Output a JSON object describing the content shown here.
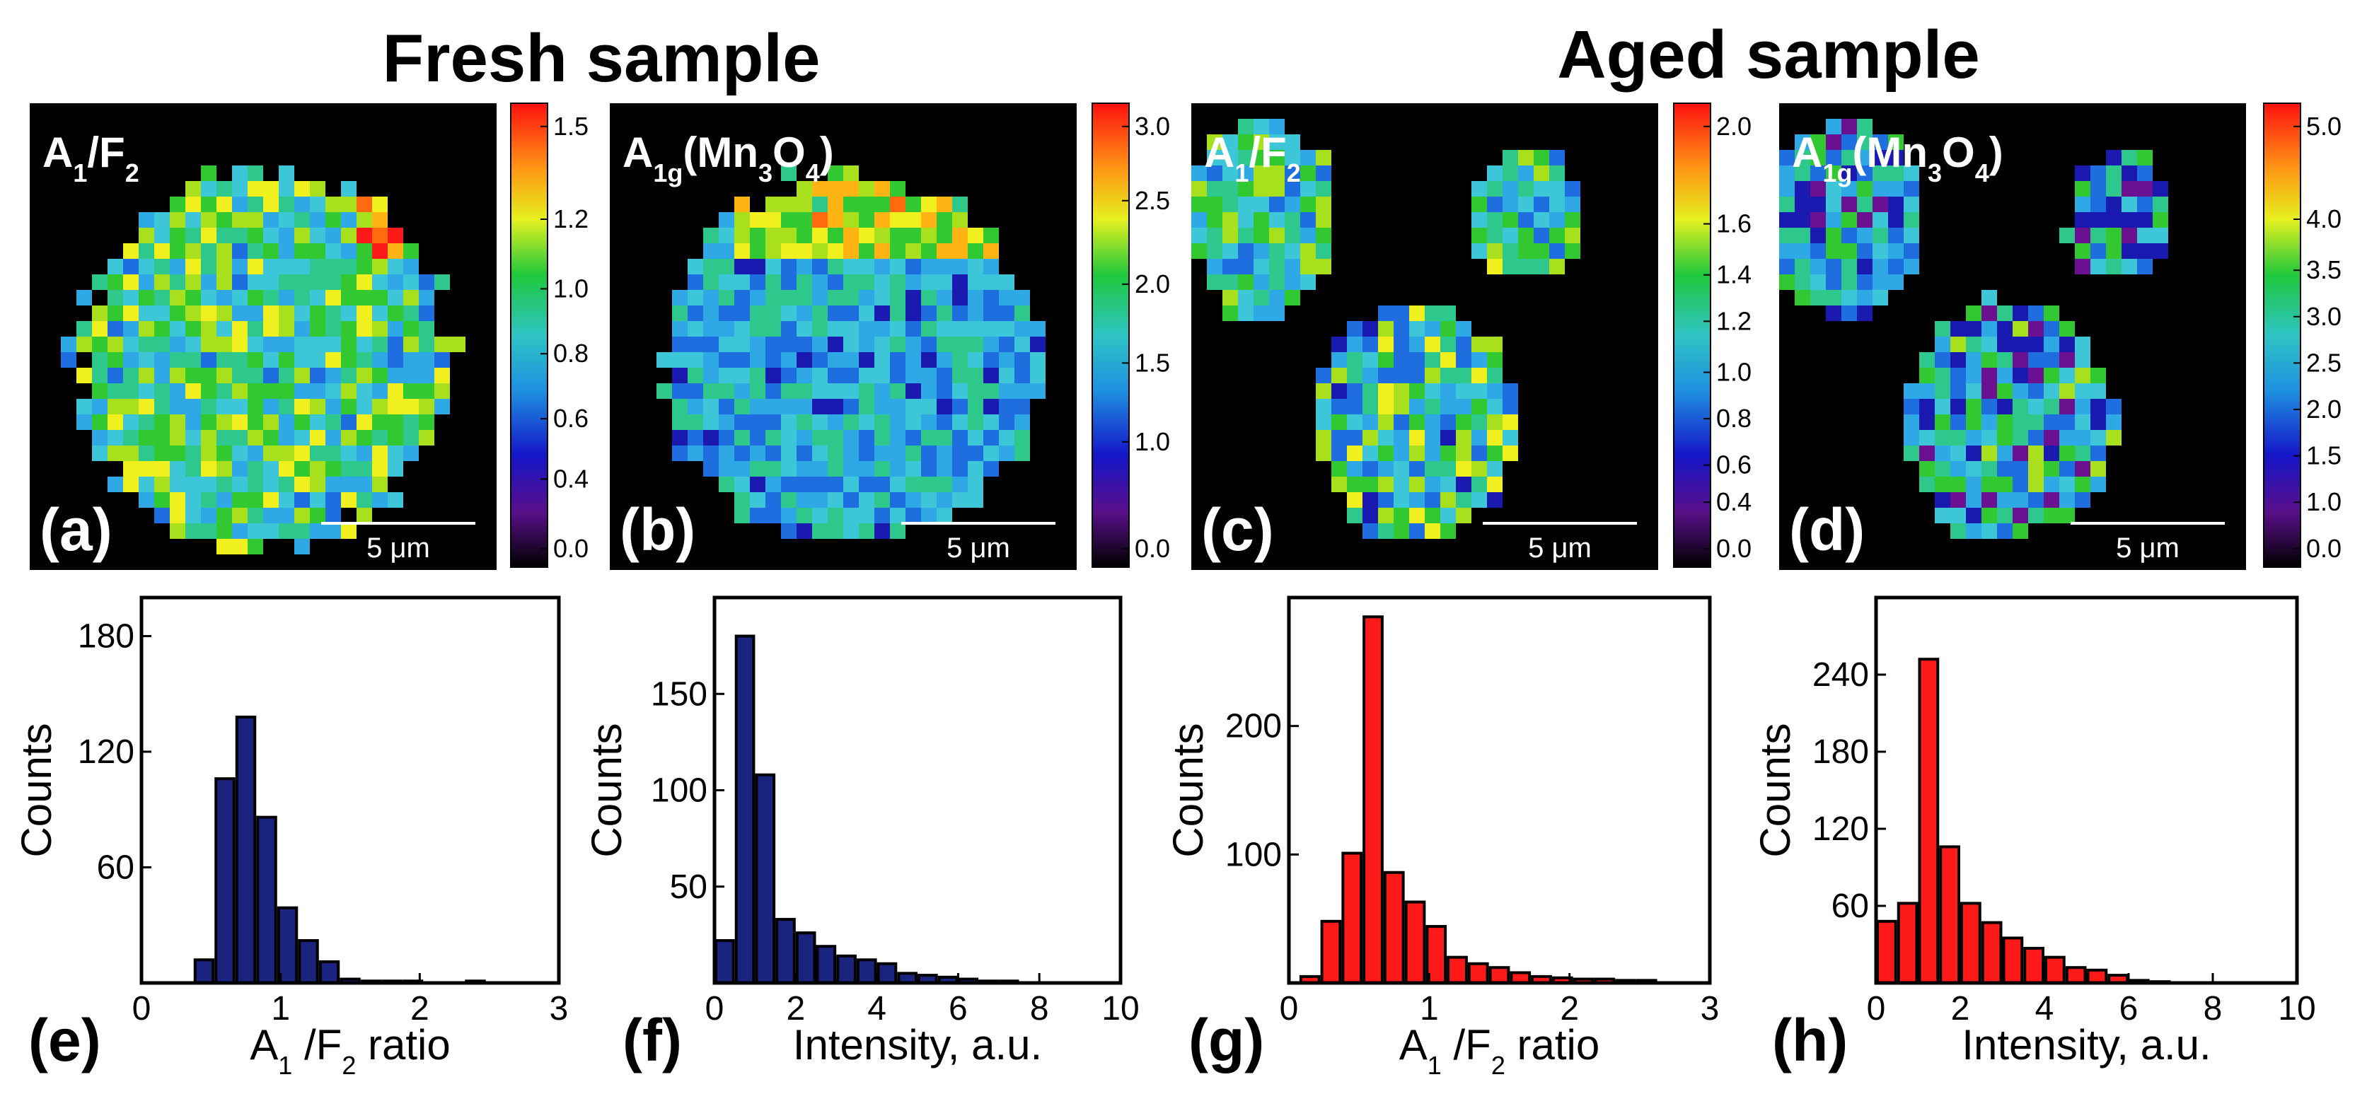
{
  "figure": {
    "section_titles": [
      "Fresh sample",
      "Aged sample"
    ],
    "maps": [
      {
        "letter": "(a)",
        "label": "A1/F2",
        "label_parts": [
          {
            "t": "A"
          },
          {
            "t": "1",
            "sub": true
          },
          {
            "t": "/F"
          },
          {
            "t": "2",
            "sub": true
          }
        ],
        "scale_bar": "5 μm",
        "colorbar_ticks": [
          "1.5",
          "1.2",
          "1.0",
          "0.8",
          "0.6",
          "0.4",
          "0.0"
        ],
        "colorbar_tick_fracs": [
          0.05,
          0.25,
          0.4,
          0.54,
          0.68,
          0.81,
          0.96
        ]
      },
      {
        "letter": "(b)",
        "label": "A1g(Mn3O4)",
        "label_parts": [
          {
            "t": "A"
          },
          {
            "t": "1g",
            "sub": true
          },
          {
            "t": "(Mn"
          },
          {
            "t": "3",
            "sub": true
          },
          {
            "t": "O"
          },
          {
            "t": "4",
            "sub": true
          },
          {
            "t": ")"
          }
        ],
        "scale_bar": "5 μm",
        "colorbar_ticks": [
          "3.0",
          "2.5",
          "2.0",
          "1.5",
          "1.0",
          "0.0"
        ],
        "colorbar_tick_fracs": [
          0.05,
          0.21,
          0.39,
          0.56,
          0.73,
          0.96
        ]
      },
      {
        "letter": "(c)",
        "label": "A1/F2",
        "label_parts": [
          {
            "t": "A"
          },
          {
            "t": "1",
            "sub": true
          },
          {
            "t": "/F"
          },
          {
            "t": "2",
            "sub": true
          }
        ],
        "scale_bar": "5 μm",
        "colorbar_ticks": [
          "2.0",
          "1.6",
          "1.4",
          "1.2",
          "1.0",
          "0.8",
          "0.6",
          "0.4",
          "0.0"
        ],
        "colorbar_tick_fracs": [
          0.05,
          0.26,
          0.37,
          0.47,
          0.58,
          0.68,
          0.78,
          0.86,
          0.96
        ]
      },
      {
        "letter": "(d)",
        "label": "A1g(Mn3O4)",
        "label_parts": [
          {
            "t": "A"
          },
          {
            "t": "1g",
            "sub": true
          },
          {
            "t": "(Mn"
          },
          {
            "t": "3",
            "sub": true
          },
          {
            "t": "O"
          },
          {
            "t": "4",
            "sub": true
          },
          {
            "t": ")"
          }
        ],
        "scale_bar": "5 μm",
        "colorbar_ticks": [
          "5.0",
          "4.0",
          "3.5",
          "3.0",
          "2.5",
          "2.0",
          "1.5",
          "1.0",
          "0.0"
        ],
        "colorbar_tick_fracs": [
          0.05,
          0.25,
          0.36,
          0.46,
          0.56,
          0.66,
          0.76,
          0.86,
          0.96
        ]
      }
    ]
  },
  "chart_data": [
    {
      "type": "bar",
      "panel": "(e)",
      "xlabel": "A1 /F2  ratio",
      "xlabel_parts": [
        {
          "t": "A"
        },
        {
          "t": "1",
          "sub": true
        },
        {
          "t": " /F"
        },
        {
          "t": "2",
          "sub": true
        },
        {
          "t": "  ratio"
        }
      ],
      "ylabel": "Counts",
      "xlim": [
        0,
        3
      ],
      "ylim": [
        0,
        200
      ],
      "xticks": [
        "0",
        "1",
        "2",
        "3"
      ],
      "yticks": [
        "60",
        "120",
        "180"
      ],
      "bin_width": 0.15,
      "bin_centers": [
        0.45,
        0.6,
        0.75,
        0.9,
        1.05,
        1.2,
        1.35,
        1.5,
        1.65,
        1.8,
        1.95,
        2.1,
        2.25,
        2.4
      ],
      "values": [
        12,
        106,
        138,
        86,
        39,
        22,
        11,
        2,
        1,
        1,
        1,
        0,
        0,
        1
      ],
      "bar_color": "#1a237e"
    },
    {
      "type": "bar",
      "panel": "(f)",
      "xlabel": "Intensity, a.u.",
      "ylabel": "Counts",
      "xlim": [
        0,
        10
      ],
      "ylim": [
        0,
        200
      ],
      "xticks": [
        "0",
        "2",
        "4",
        "6",
        "8",
        "10"
      ],
      "yticks": [
        "50",
        "100",
        "150"
      ],
      "bin_width": 0.5,
      "bin_centers": [
        0.25,
        0.75,
        1.25,
        1.75,
        2.25,
        2.75,
        3.25,
        3.75,
        4.25,
        4.75,
        5.25,
        5.75,
        6.25,
        6.75,
        7.25
      ],
      "values": [
        22,
        180,
        108,
        33,
        26,
        19,
        14,
        12,
        10,
        5,
        4,
        3,
        2,
        1,
        1
      ],
      "bar_color": "#1a237e"
    },
    {
      "type": "bar",
      "panel": "(g)",
      "xlabel": "A1 /F2  ratio",
      "xlabel_parts": [
        {
          "t": "A"
        },
        {
          "t": "1",
          "sub": true
        },
        {
          "t": " /F"
        },
        {
          "t": "2",
          "sub": true
        },
        {
          "t": "  ratio"
        }
      ],
      "ylabel": "Counts",
      "xlim": [
        0,
        3
      ],
      "ylim": [
        0,
        300
      ],
      "xticks": [
        "0",
        "1",
        "2",
        "3"
      ],
      "yticks": [
        "100",
        "200"
      ],
      "bin_width": 0.15,
      "bin_centers": [
        0.15,
        0.3,
        0.45,
        0.6,
        0.75,
        0.9,
        1.05,
        1.2,
        1.35,
        1.5,
        1.65,
        1.8,
        1.95,
        2.1,
        2.25,
        2.4,
        2.55
      ],
      "values": [
        5,
        48,
        101,
        285,
        86,
        63,
        44,
        20,
        15,
        12,
        8,
        5,
        4,
        3,
        3,
        2,
        2
      ],
      "bar_color": "#ff1a1a"
    },
    {
      "type": "bar",
      "panel": "(h)",
      "xlabel": "Intensity, a.u.",
      "ylabel": "Counts",
      "xlim": [
        0,
        10
      ],
      "ylim": [
        0,
        300
      ],
      "xticks": [
        "0",
        "2",
        "4",
        "6",
        "8",
        "10"
      ],
      "yticks": [
        "60",
        "120",
        "180",
        "240"
      ],
      "bin_width": 0.5,
      "bin_centers": [
        0.25,
        0.75,
        1.25,
        1.75,
        2.25,
        2.75,
        3.25,
        3.75,
        4.25,
        4.75,
        5.25,
        5.75,
        6.25,
        6.75
      ],
      "values": [
        48,
        62,
        252,
        106,
        62,
        47,
        35,
        27,
        20,
        12,
        10,
        6,
        2,
        1
      ],
      "bar_color": "#ff1a1a"
    }
  ]
}
